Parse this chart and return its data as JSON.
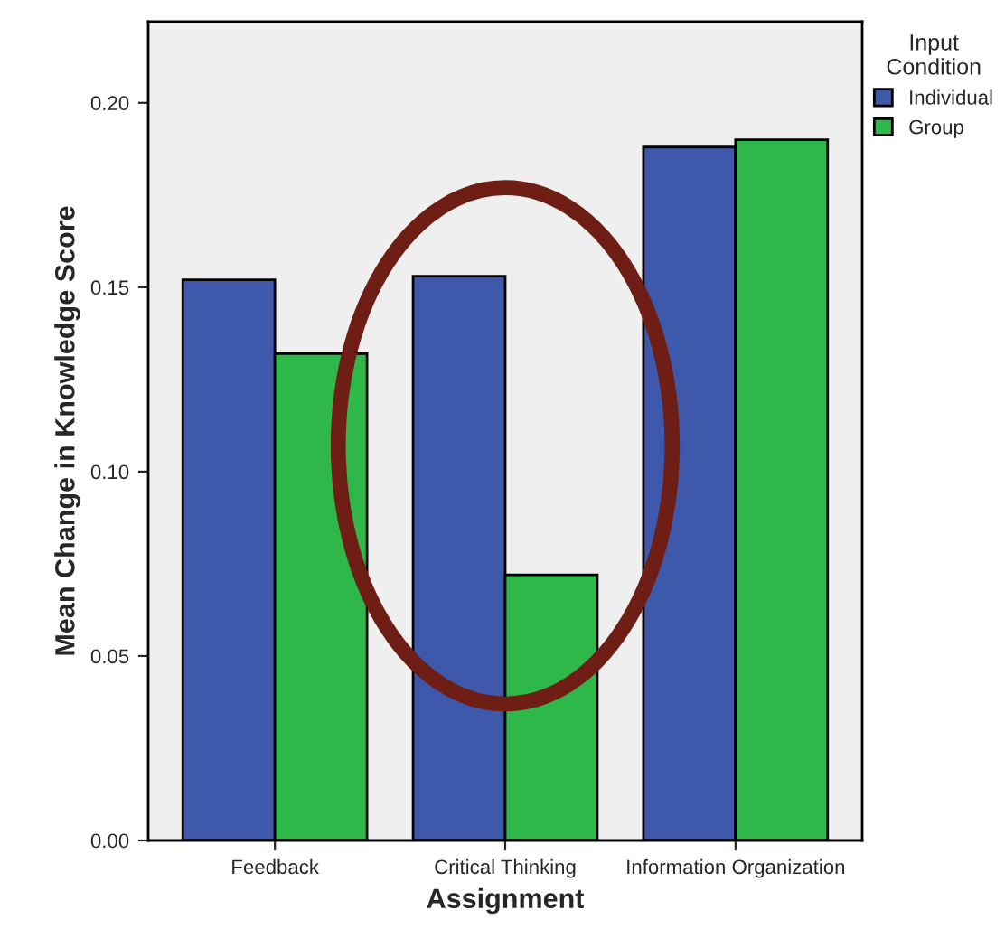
{
  "chart_data": {
    "type": "bar",
    "xlabel": "Assignment",
    "ylabel": "Mean Change in Knowledge Score",
    "legend_title": "Input\nCondition",
    "categories": [
      "Feedback",
      "Critical Thinking",
      "Information Organization"
    ],
    "series": [
      {
        "name": "Individual",
        "color": "#3e58ac",
        "values": [
          0.152,
          0.153,
          0.188
        ]
      },
      {
        "name": "Group",
        "color": "#2fb84a",
        "values": [
          0.132,
          0.072,
          0.19
        ]
      }
    ],
    "ylim": [
      0,
      0.222
    ],
    "yticks": [
      {
        "value": 0,
        "label": "0.00"
      },
      {
        "value": 0.05,
        "label": "0.05"
      },
      {
        "value": 0.1,
        "label": "0.10"
      },
      {
        "value": 0.15,
        "label": "0.15"
      },
      {
        "value": 0.2,
        "label": "0.20"
      }
    ],
    "grid": false,
    "legend": "top right"
  }
}
